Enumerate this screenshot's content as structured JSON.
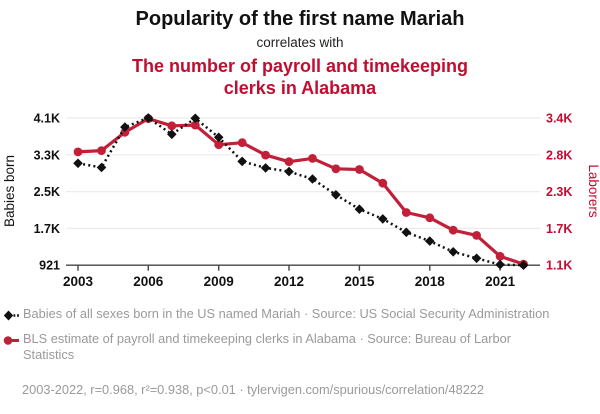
{
  "titles": {
    "main": "Popularity of the first name Mariah",
    "connector": "correlates with",
    "sub": "The number of payroll and timekeeping clerks in Alabama"
  },
  "chart_data": {
    "type": "line",
    "title": "Popularity of the first name Mariah correlates with the number of payroll and timekeeping clerks in Alabama",
    "x": [
      2003,
      2004,
      2005,
      2006,
      2007,
      2008,
      2009,
      2010,
      2011,
      2012,
      2013,
      2014,
      2015,
      2016,
      2017,
      2018,
      2019,
      2020,
      2021,
      2022
    ],
    "series": [
      {
        "name": "Babies of all sexes born in the US named Mariah",
        "axis": "left",
        "style": "black-dotted-diamond",
        "values": [
          3120,
          3030,
          3900,
          4100,
          3745,
          4090,
          3680,
          3160,
          3020,
          2940,
          2780,
          2440,
          2130,
          1920,
          1630,
          1440,
          1210,
          1070,
          935,
          921
        ]
      },
      {
        "name": "BLS estimate of payroll and timekeeping clerks in Alabama",
        "axis": "right",
        "style": "red-solid-circle",
        "values": [
          2880,
          2900,
          3180,
          3390,
          3280,
          3290,
          2990,
          3020,
          2830,
          2730,
          2780,
          2620,
          2610,
          2400,
          1950,
          1870,
          1680,
          1600,
          1280,
          1160
        ]
      }
    ],
    "left_axis": {
      "label": "Babies born",
      "range": [
        921,
        4097
      ],
      "ticks": [
        {
          "value": 4097,
          "label": "4.1K"
        },
        {
          "value": 3303,
          "label": "3.3K"
        },
        {
          "value": 2509,
          "label": "2.5K"
        },
        {
          "value": 1715,
          "label": "1.7K"
        },
        {
          "value": 921,
          "label": "921"
        }
      ]
    },
    "right_axis": {
      "label": "Laborers",
      "range": [
        1143,
        3399
      ],
      "ticks": [
        {
          "value": 3399,
          "label": "3.4K"
        },
        {
          "value": 2835,
          "label": "2.8K"
        },
        {
          "value": 2271,
          "label": "2.3K"
        },
        {
          "value": 1707,
          "label": "1.7K"
        },
        {
          "value": 1143,
          "label": "1.1K"
        }
      ]
    },
    "x_axis": {
      "tick_years": [
        2003,
        2006,
        2009,
        2012,
        2015,
        2018,
        2021
      ]
    },
    "grid": "horizontal",
    "legend_position": "bottom"
  },
  "legend": {
    "items": [
      {
        "marker": "black-diamond-dotted",
        "label": "Babies of all sexes born in the US named Mariah · Source: US Social Security Administration"
      },
      {
        "marker": "red-circle-solid",
        "label": "BLS estimate of payroll and timekeeping clerks in Alabama · Source: Bureau of Larbor Statistics"
      }
    ]
  },
  "footer": {
    "text": "2003-2022, r=0.968, r²=0.938, p<0.01 · tylervigen.com/spurious/correlation/48222"
  },
  "colors": {
    "accent_red": "#c20d31",
    "line_red": "#c22038",
    "series_black": "#111111",
    "legend_gray": "#9a9a9a",
    "grid": "#ececec",
    "axis": "#444444"
  }
}
